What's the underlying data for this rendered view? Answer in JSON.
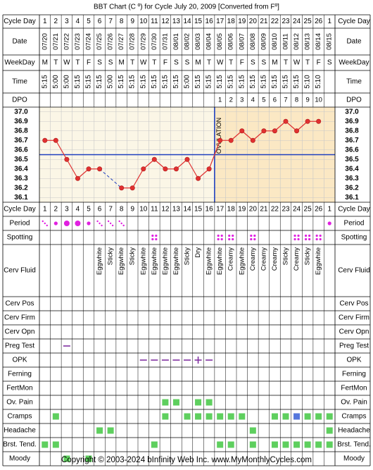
{
  "title": "BBT Chart (C º) for Cycle July 20, 2009  [Converted from Fº]",
  "footer": "Copyright © 2003-2024 bInfinity Web Inc.    www.MyMonthlyCycles.com",
  "labels": {
    "cycle_day": "Cycle Day",
    "date": "Date",
    "weekday": "WeekDay",
    "time": "Time",
    "dpo": "DPO",
    "period": "Period",
    "spotting": "Spotting",
    "cerv_fluid": "Cerv Fluid",
    "cerv_pos": "Cerv Pos",
    "cerv_firm": "Cerv Firm",
    "cerv_opn": "Cerv Opn",
    "preg_test": "Preg Test",
    "opk": "OPK",
    "ferning": "Ferning",
    "fertmon": "FertMon",
    "ov_pain": "Ov. Pain",
    "cramps": "Cramps",
    "headache": "Headache",
    "brst_tend": "Brst. Tend.",
    "moody": "Moody"
  },
  "colors": {
    "line": "#e03030",
    "dot_fill": "#e03030",
    "dot_stroke": "#b02020",
    "coverline": "#1f3fbf",
    "ovulation_line": "#1f3fbf",
    "pre_ov_bg": "#fbf6e6",
    "post_ov_bg": "#fbe8c4",
    "grid": "#c8c8c8",
    "period": "#e020e0",
    "spotting": "#e020e0",
    "symptom": "#5ecf5e",
    "symptom_alt": "#5577dd",
    "opk": "#8030a0",
    "preg": "#8030a0"
  },
  "chart_data": {
    "type": "line",
    "title": "BBT Chart (C º) for Cycle July 20, 2009  [Converted from Fº]",
    "x_label": "Cycle Day",
    "y_label": "",
    "days": [
      1,
      2,
      3,
      4,
      5,
      6,
      7,
      8,
      9,
      10,
      11,
      12,
      13,
      14,
      15,
      16,
      17,
      18,
      19,
      20,
      21,
      22,
      23,
      24,
      25,
      26,
      1
    ],
    "dates": [
      "07/20",
      "07/21",
      "07/22",
      "07/23",
      "07/24",
      "07/25",
      "07/26",
      "07/27",
      "07/28",
      "07/29",
      "07/30",
      "07/31",
      "08/01",
      "08/02",
      "08/03",
      "08/04",
      "08/05",
      "08/06",
      "08/07",
      "08/08",
      "08/09",
      "08/10",
      "08/11",
      "08/12",
      "08/13",
      "08/14",
      "08/15"
    ],
    "weekdays": [
      "M",
      "T",
      "W",
      "T",
      "F",
      "S",
      "S",
      "M",
      "T",
      "W",
      "T",
      "F",
      "S",
      "S",
      "M",
      "T",
      "W",
      "T",
      "F",
      "S",
      "S",
      "M",
      "T",
      "W",
      "T",
      "F",
      "S"
    ],
    "times": [
      "5:15",
      "5:00",
      "5:00",
      "5:15",
      "5:15",
      "5:15",
      "5:00",
      "5:15",
      "5:15",
      "5:15",
      "5:15",
      "5:15",
      "5:15",
      "5:00",
      "5:15",
      "5:15",
      "5:15",
      "5:15",
      "5:15",
      "5:15",
      "5:15",
      "5:15",
      "5:15",
      "5:15",
      "5:10",
      "5:10",
      ""
    ],
    "dpo": [
      "",
      "",
      "",
      "",
      "",
      "",
      "",
      "",
      "",
      "",
      "",
      "",
      "",
      "",
      "",
      "",
      "1",
      "2",
      "3",
      "4",
      "5",
      "6",
      "7",
      "8",
      "9",
      "10",
      ""
    ],
    "temps": [
      36.7,
      36.7,
      36.5,
      36.3,
      36.4,
      36.4,
      null,
      36.2,
      36.2,
      36.4,
      36.5,
      36.4,
      36.4,
      36.5,
      36.3,
      36.4,
      36.7,
      36.7,
      36.8,
      36.7,
      36.8,
      36.8,
      36.9,
      36.8,
      36.9,
      36.9,
      null
    ],
    "y_ticks": [
      37.0,
      36.9,
      36.8,
      36.7,
      36.6,
      36.5,
      36.4,
      36.3,
      36.2,
      36.1
    ],
    "y_range": [
      36.05,
      37.05
    ],
    "coverline": 36.55,
    "ovulation_day": 16,
    "ovulation_label": "OVULATION",
    "grid": true,
    "rows": {
      "period": [
        "light",
        "medium",
        "heavy",
        "heavy",
        "medium",
        "light",
        "light",
        "light",
        "",
        "",
        "",
        "",
        "",
        "",
        "",
        "",
        "",
        "",
        "",
        "",
        "",
        "",
        "",
        "",
        "",
        "",
        "medium"
      ],
      "spotting": [
        0,
        0,
        0,
        0,
        0,
        0,
        0,
        0,
        0,
        0,
        1,
        0,
        0,
        0,
        0,
        0,
        1,
        1,
        0,
        1,
        0,
        0,
        0,
        1,
        1,
        1,
        0
      ],
      "cerv_fluid": [
        "",
        "",
        "",
        "",
        "",
        "Eggwhite",
        "Sticky",
        "Eggwhite",
        "Sticky",
        "Eggwhite",
        "Eggwhite",
        "Eggwhite",
        "Eggwhite",
        "Sticky",
        "Dry",
        "Eggwhite",
        "Eggwhite",
        "Creamy",
        "Eggwhite",
        "Creamy",
        "Creamy",
        "Creamy",
        "Sticky",
        "Creamy",
        "Sticky",
        "Eggwhite",
        ""
      ],
      "preg_test": [
        0,
        0,
        1,
        0,
        0,
        0,
        0,
        0,
        0,
        0,
        0,
        0,
        0,
        0,
        0,
        0,
        0,
        0,
        0,
        0,
        0,
        0,
        0,
        0,
        0,
        0,
        0
      ],
      "opk": [
        "",
        "",
        "",
        "",
        "",
        "",
        "",
        "",
        "",
        "neg",
        "neg",
        "neg",
        "neg",
        "neg",
        "pos",
        "neg",
        "",
        "",
        "",
        "",
        "",
        "",
        "",
        "",
        "",
        "",
        ""
      ],
      "ov_pain": [
        0,
        0,
        0,
        0,
        0,
        0,
        0,
        0,
        0,
        0,
        0,
        1,
        1,
        0,
        1,
        1,
        0,
        0,
        0,
        0,
        0,
        0,
        0,
        0,
        0,
        0,
        0
      ],
      "cramps": [
        0,
        1,
        0,
        0,
        0,
        0,
        0,
        0,
        0,
        0,
        0,
        1,
        0,
        1,
        1,
        1,
        1,
        1,
        1,
        0,
        0,
        1,
        1,
        2,
        1,
        1,
        1
      ],
      "headache": [
        0,
        0,
        0,
        0,
        0,
        1,
        1,
        0,
        0,
        0,
        0,
        0,
        0,
        0,
        0,
        0,
        0,
        0,
        0,
        1,
        0,
        0,
        0,
        0,
        0,
        0,
        1
      ],
      "brst_tend": [
        1,
        1,
        0,
        0,
        0,
        0,
        0,
        0,
        0,
        0,
        1,
        0,
        0,
        0,
        0,
        0,
        1,
        1,
        0,
        1,
        0,
        1,
        1,
        1,
        1,
        1,
        1
      ],
      "moody": [
        0,
        0,
        1,
        0,
        1,
        0,
        0,
        0,
        0,
        0,
        0,
        0,
        0,
        0,
        0,
        0,
        0,
        0,
        0,
        0,
        0,
        0,
        0,
        0,
        0,
        0,
        0
      ]
    }
  }
}
